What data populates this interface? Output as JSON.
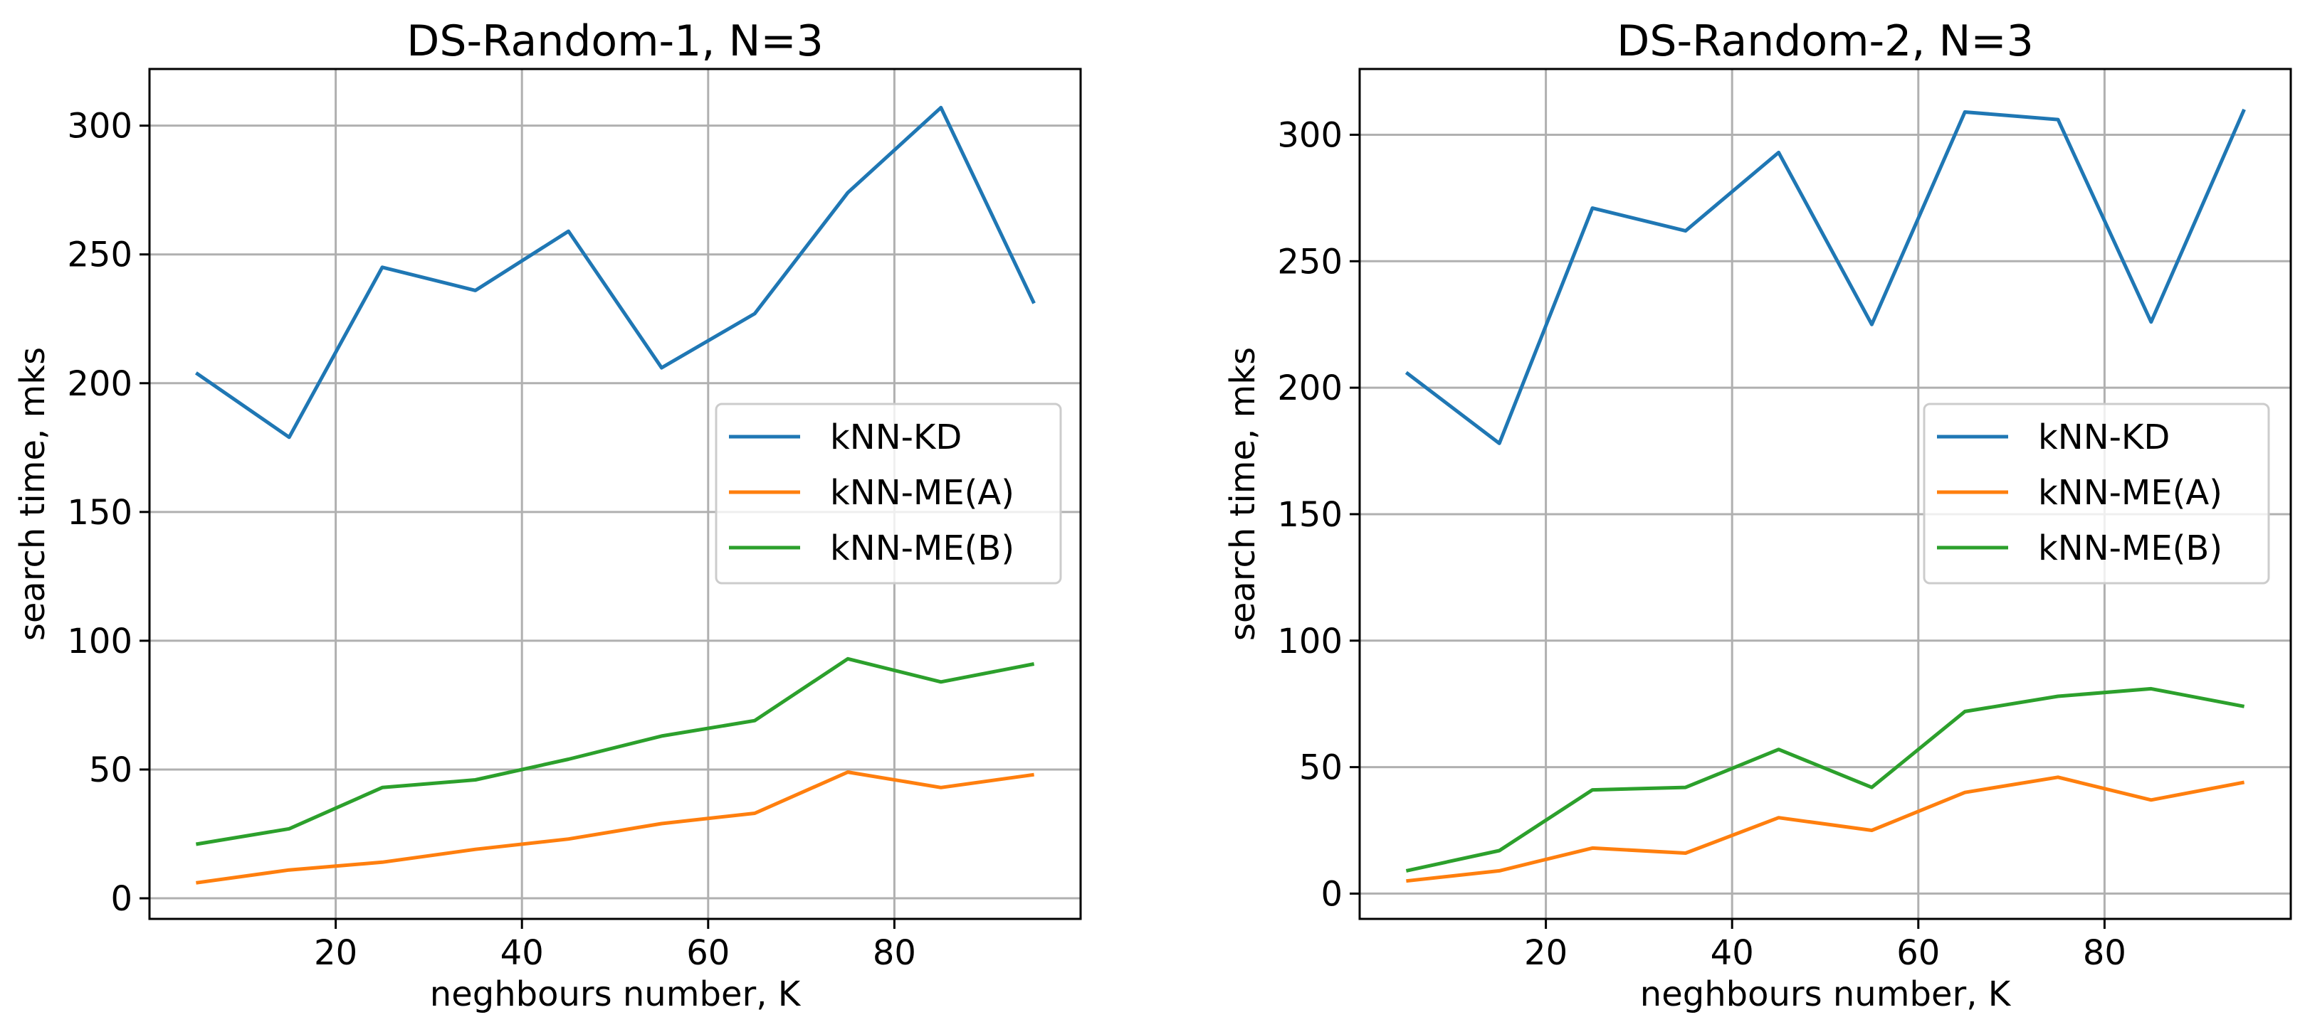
{
  "chart_data": [
    {
      "type": "line",
      "title": "DS-Random-1, N=3",
      "xlabel": "neghbours number, K",
      "ylabel": "search time, mks",
      "xlim": [
        0,
        100
      ],
      "ylim": [
        -8,
        322
      ],
      "xticks": [
        20,
        40,
        60,
        80
      ],
      "yticks": [
        0,
        50,
        100,
        150,
        200,
        250,
        300
      ],
      "grid": true,
      "legend_position": "center-right",
      "x": [
        5,
        15,
        25,
        35,
        45,
        55,
        65,
        75,
        85,
        95
      ],
      "series": [
        {
          "name": "kNN-KD",
          "color": "#1f77b4",
          "values": [
            204,
            179,
            245,
            236,
            259,
            206,
            227,
            274,
            307,
            231
          ]
        },
        {
          "name": "kNN-ME(A)",
          "color": "#ff7f0e",
          "values": [
            6,
            11,
            14,
            19,
            23,
            29,
            33,
            49,
            43,
            48
          ]
        },
        {
          "name": "kNN-ME(B)",
          "color": "#2ca02c",
          "values": [
            21,
            27,
            43,
            46,
            54,
            63,
            69,
            93,
            84,
            91
          ]
        }
      ]
    },
    {
      "type": "line",
      "title": "DS-Random-2, N=3",
      "xlabel": "neghbours number, K",
      "ylabel": "search time, mks",
      "xlim": [
        0,
        100
      ],
      "ylim": [
        -10,
        326
      ],
      "xticks": [
        20,
        40,
        60,
        80
      ],
      "yticks": [
        0,
        50,
        100,
        150,
        200,
        250,
        300
      ],
      "grid": true,
      "legend_position": "center-right",
      "x": [
        5,
        15,
        25,
        35,
        45,
        55,
        65,
        75,
        85,
        95
      ],
      "series": [
        {
          "name": "kNN-KD",
          "color": "#1f77b4",
          "values": [
            206,
            178,
            271,
            262,
            293,
            225,
            309,
            306,
            226,
            310
          ]
        },
        {
          "name": "kNN-ME(A)",
          "color": "#ff7f0e",
          "values": [
            5,
            9,
            18,
            16,
            30,
            25,
            40,
            46,
            37,
            44
          ]
        },
        {
          "name": "kNN-ME(B)",
          "color": "#2ca02c",
          "values": [
            9,
            17,
            41,
            42,
            57,
            42,
            72,
            78,
            81,
            74
          ]
        }
      ]
    }
  ]
}
